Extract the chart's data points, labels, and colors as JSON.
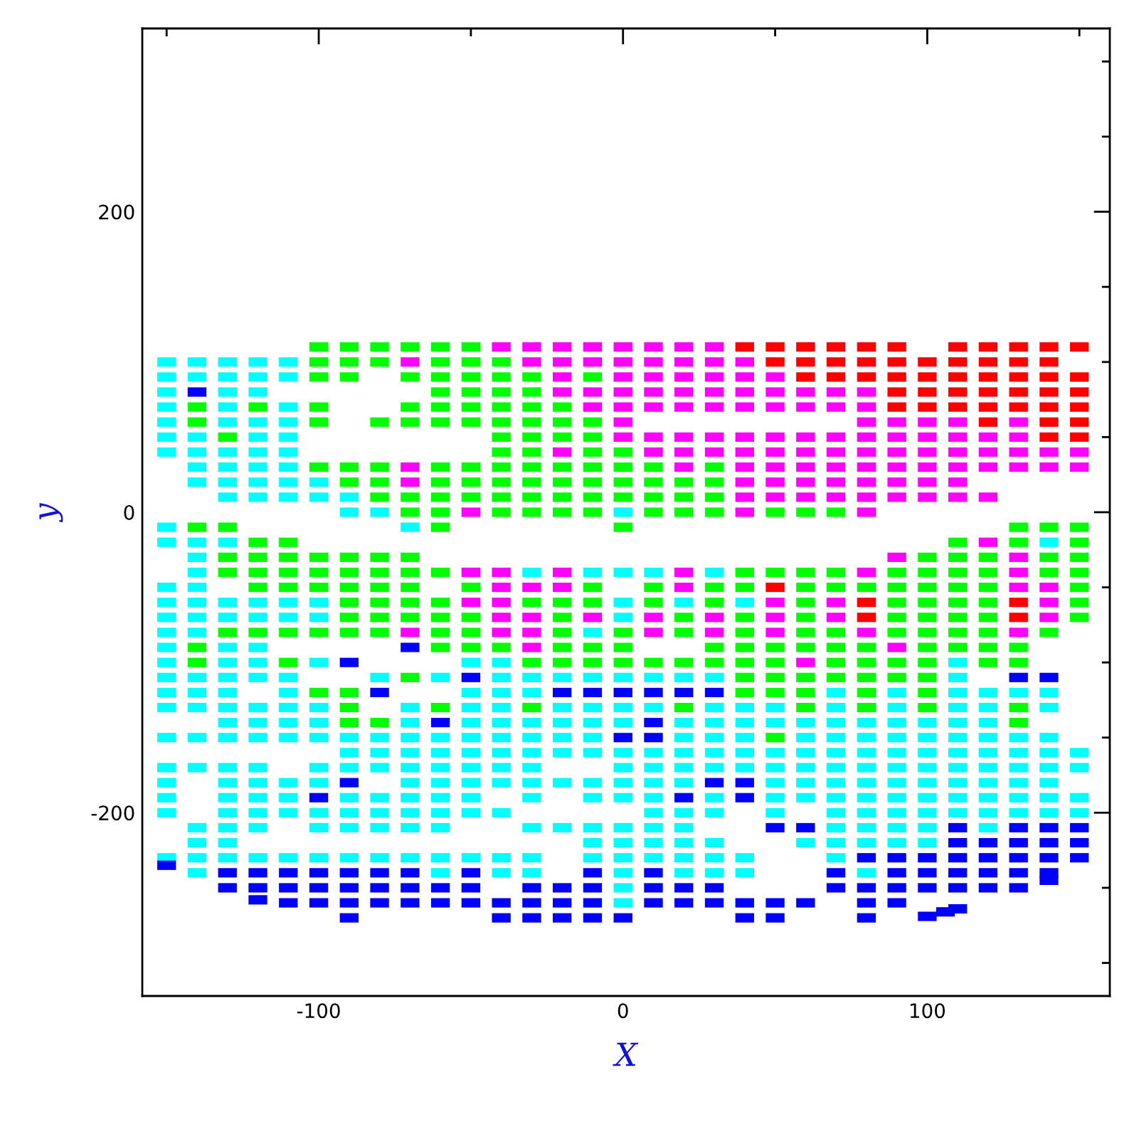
{
  "chart_data": {
    "type": "scatter",
    "xlabel": "X",
    "ylabel": "y",
    "marker": "square",
    "grid": false,
    "xlim": [
      -158,
      160
    ],
    "ylim": [
      -322,
      322
    ],
    "xticks": [
      {
        "value": -150,
        "label": null
      },
      -100,
      {
        "value": -50,
        "label": null
      },
      0,
      {
        "value": 50,
        "label": null
      },
      100,
      {
        "value": 150,
        "label": null
      }
    ],
    "yticks": [
      {
        "value": -300,
        "label": null
      },
      {
        "value": -250,
        "label": null
      },
      -200,
      {
        "value": -150,
        "label": null
      },
      {
        "value": -100,
        "label": null
      },
      {
        "value": -50,
        "label": null
      },
      0,
      {
        "value": 50,
        "label": null
      },
      {
        "value": 100,
        "label": null
      },
      {
        "value": 150,
        "label": null
      },
      200,
      {
        "value": 250,
        "label": null
      },
      {
        "value": 300,
        "label": null
      }
    ],
    "series": [
      {
        "color": "#00ffff",
        "x": [
          -150,
          -140,
          -130,
          -120,
          -110,
          -150,
          -140,
          -130,
          -120,
          -110,
          -150,
          -130,
          -120,
          -150,
          -130,
          -110,
          -150,
          -130,
          -120,
          -110,
          -150,
          -140,
          -120,
          -110,
          -150,
          -140,
          -130,
          -120,
          -110,
          -140,
          -130,
          -120,
          -110,
          -140,
          -130,
          -120,
          -110,
          -100,
          -130,
          -120,
          -110,
          -100,
          -90,
          -90,
          -80,
          0,
          -150,
          -70,
          -150,
          -140,
          -130,
          140,
          -140,
          -140,
          -30,
          -10,
          0,
          10,
          30,
          -150,
          -140,
          -150,
          -140,
          -130,
          -120,
          -110,
          -100,
          0,
          20,
          40,
          -150,
          -140,
          -130,
          -120,
          -110,
          -100,
          0,
          -150,
          -140,
          -10,
          -150,
          -130,
          -120,
          -150,
          -130,
          -120,
          -100,
          -50,
          -40,
          110,
          -150,
          -140,
          -130,
          -120,
          -110,
          -80,
          -60,
          -40,
          -30,
          -20,
          -10,
          0,
          10,
          20,
          30,
          110,
          -150,
          -140,
          -130,
          -110,
          -50,
          -40,
          -30,
          70,
          90,
          110,
          120,
          130,
          140,
          -150,
          -140,
          -130,
          -120,
          -110,
          -100,
          -70,
          -50,
          -40,
          -20,
          -10,
          0,
          10,
          30,
          40,
          50,
          70,
          90,
          110,
          120,
          140,
          -130,
          -120,
          -110,
          -100,
          -70,
          -50,
          -40,
          -30,
          -20,
          -10,
          0,
          20,
          30,
          40,
          50,
          60,
          70,
          80,
          90,
          100,
          110,
          120,
          -150,
          -140,
          -130,
          -120,
          -110,
          -100,
          -90,
          -80,
          -70,
          -60,
          -50,
          -40,
          -30,
          -20,
          -10,
          20,
          30,
          40,
          60,
          70,
          80,
          90,
          100,
          110,
          120,
          130,
          140,
          -90,
          -80,
          -70,
          -60,
          -50,
          -40,
          -30,
          -20,
          -10,
          0,
          10,
          20,
          30,
          40,
          50,
          60,
          70,
          80,
          90,
          100,
          110,
          120,
          130,
          140,
          150,
          -150,
          -140,
          -130,
          -120,
          -100,
          -90,
          -80,
          -70,
          -60,
          -50,
          -40,
          -30,
          0,
          10,
          20,
          30,
          40,
          50,
          60,
          70,
          80,
          90,
          100,
          110,
          120,
          130,
          140,
          150,
          -150,
          -130,
          -120,
          -110,
          -100,
          -70,
          -60,
          -50,
          -40,
          -30,
          -20,
          -10,
          0,
          10,
          20,
          50,
          60,
          70,
          80,
          90,
          100,
          110,
          120,
          130,
          140,
          -150,
          -130,
          -120,
          -110,
          -90,
          -80,
          -70,
          -60,
          -50,
          -30,
          -10,
          0,
          10,
          30,
          50,
          60,
          70,
          80,
          90,
          100,
          110,
          120,
          130,
          140,
          150,
          -150,
          -130,
          -120,
          -110,
          -100,
          -90,
          -80,
          -70,
          -60,
          -50,
          -40,
          10,
          20,
          30,
          50,
          70,
          80,
          90,
          100,
          110,
          120,
          130,
          140,
          150,
          -140,
          -130,
          -120,
          -100,
          -90,
          -80,
          -70,
          -60,
          -30,
          -20,
          -10,
          0,
          10,
          20,
          70,
          80,
          90,
          100,
          120,
          -140,
          -130,
          -10,
          0,
          10,
          20,
          30,
          60,
          70,
          80,
          90,
          100,
          -150,
          -140,
          -130,
          -120,
          -110,
          -100,
          -90,
          -80,
          -70,
          -60,
          -50,
          -40,
          -30,
          -10,
          0,
          10,
          20,
          30,
          40,
          70,
          -140,
          -60,
          -40,
          -30,
          0,
          20,
          30,
          40,
          80,
          0,
          0
        ],
        "values": [
          100,
          100,
          100,
          100,
          100,
          90,
          90,
          90,
          90,
          90,
          80,
          80,
          80,
          70,
          70,
          70,
          60,
          60,
          60,
          60,
          50,
          50,
          50,
          50,
          40,
          40,
          40,
          40,
          40,
          30,
          30,
          30,
          30,
          20,
          20,
          20,
          20,
          20,
          10,
          10,
          10,
          10,
          10,
          0,
          0,
          0,
          -10,
          -10,
          -20,
          -20,
          -20,
          -20,
          -30,
          -40,
          -40,
          -40,
          -40,
          -40,
          -40,
          -50,
          -50,
          -60,
          -60,
          -60,
          -60,
          -60,
          -60,
          -60,
          -60,
          -60,
          -70,
          -70,
          -70,
          -70,
          -70,
          -70,
          -70,
          -80,
          -80,
          -80,
          -90,
          -90,
          -90,
          -100,
          -100,
          -100,
          -100,
          -100,
          -100,
          -100,
          -110,
          -110,
          -110,
          -110,
          -110,
          -110,
          -110,
          -110,
          -110,
          -110,
          -110,
          -110,
          -110,
          -110,
          -110,
          -110,
          -120,
          -120,
          -120,
          -120,
          -120,
          -120,
          -120,
          -120,
          -120,
          -120,
          -120,
          -120,
          -120,
          -130,
          -130,
          -130,
          -130,
          -130,
          -130,
          -130,
          -130,
          -130,
          -130,
          -130,
          -130,
          -130,
          -130,
          -130,
          -130,
          -130,
          -130,
          -130,
          -130,
          -130,
          -140,
          -140,
          -140,
          -140,
          -140,
          -140,
          -140,
          -140,
          -140,
          -140,
          -140,
          -140,
          -140,
          -140,
          -140,
          -140,
          -140,
          -140,
          -140,
          -140,
          -140,
          -140,
          -150,
          -150,
          -150,
          -150,
          -150,
          -150,
          -150,
          -150,
          -150,
          -150,
          -150,
          -150,
          -150,
          -150,
          -150,
          -150,
          -150,
          -150,
          -150,
          -150,
          -150,
          -150,
          -150,
          -150,
          -150,
          -150,
          -150,
          -160,
          -160,
          -160,
          -160,
          -160,
          -160,
          -160,
          -160,
          -160,
          -160,
          -160,
          -160,
          -160,
          -160,
          -160,
          -160,
          -160,
          -160,
          -160,
          -160,
          -160,
          -160,
          -160,
          -160,
          -160,
          -170,
          -170,
          -170,
          -170,
          -170,
          -170,
          -170,
          -170,
          -170,
          -170,
          -170,
          -170,
          -170,
          -170,
          -170,
          -170,
          -170,
          -170,
          -170,
          -170,
          -170,
          -170,
          -170,
          -170,
          -170,
          -170,
          -170,
          -170,
          -180,
          -180,
          -180,
          -180,
          -180,
          -180,
          -180,
          -180,
          -180,
          -180,
          -180,
          -180,
          -180,
          -180,
          -180,
          -180,
          -180,
          -180,
          -180,
          -180,
          -180,
          -180,
          -180,
          -180,
          -180,
          -190,
          -190,
          -190,
          -190,
          -190,
          -190,
          -190,
          -190,
          -190,
          -190,
          -190,
          -190,
          -190,
          -190,
          -190,
          -190,
          -190,
          -190,
          -190,
          -190,
          -190,
          -190,
          -190,
          -190,
          -190,
          -200,
          -200,
          -200,
          -200,
          -200,
          -200,
          -200,
          -200,
          -200,
          -200,
          -200,
          -200,
          -200,
          -200,
          -200,
          -200,
          -200,
          -200,
          -200,
          -200,
          -200,
          -200,
          -200,
          -200,
          -210,
          -210,
          -210,
          -210,
          -210,
          -210,
          -210,
          -210,
          -210,
          -210,
          -210,
          -210,
          -210,
          -210,
          -210,
          -210,
          -210,
          -210,
          -210,
          -220,
          -220,
          -220,
          -220,
          -220,
          -220,
          -220,
          -220,
          -220,
          -220,
          -220,
          -220,
          -230,
          -230,
          -230,
          -230,
          -230,
          -230,
          -230,
          -230,
          -230,
          -230,
          -230,
          -230,
          -230,
          -230,
          -230,
          -230,
          -230,
          -230,
          -230,
          -230,
          -240,
          -240,
          -240,
          -240,
          -240,
          -240,
          -240,
          -240,
          -240,
          -250,
          -260
        ]
      },
      {
        "color": "#00ff00",
        "x": [
          -100,
          -90,
          -80,
          -70,
          -60,
          -50,
          -100,
          -90,
          -80,
          -60,
          -50,
          -40,
          -100,
          -90,
          -70,
          -60,
          -50,
          -40,
          -30,
          -10,
          -60,
          -50,
          -40,
          -30,
          -140,
          -120,
          -100,
          -70,
          -60,
          -50,
          -40,
          -30,
          -20,
          -140,
          -100,
          -80,
          -70,
          -60,
          -50,
          -40,
          -30,
          -20,
          -10,
          -130,
          -40,
          -30,
          -20,
          -10,
          -40,
          -30,
          -10,
          0,
          -100,
          -90,
          -80,
          -60,
          -50,
          -40,
          -30,
          -20,
          -10,
          0,
          10,
          30,
          -90,
          -80,
          -60,
          -50,
          -40,
          -30,
          -20,
          -10,
          0,
          10,
          20,
          30,
          -80,
          -70,
          -60,
          -50,
          -40,
          -30,
          -20,
          -10,
          0,
          10,
          20,
          30,
          -70,
          -60,
          -40,
          -30,
          -20,
          -10,
          10,
          20,
          30,
          50,
          60,
          70,
          -140,
          -130,
          -60,
          0,
          130,
          140,
          150,
          -120,
          -110,
          110,
          130,
          150,
          -130,
          -120,
          -110,
          -100,
          -90,
          -80,
          -70,
          100,
          110,
          120,
          140,
          150,
          -130,
          -120,
          -110,
          -100,
          -90,
          -80,
          -70,
          -60,
          40,
          50,
          60,
          70,
          90,
          100,
          110,
          120,
          140,
          150,
          -120,
          -110,
          -100,
          -90,
          -80,
          -70,
          -50,
          -10,
          10,
          30,
          40,
          60,
          70,
          80,
          90,
          100,
          110,
          120,
          150,
          -90,
          -80,
          -70,
          -60,
          -30,
          -20,
          -10,
          10,
          30,
          60,
          90,
          100,
          110,
          120,
          150,
          -90,
          -80,
          -70,
          -60,
          -50,
          -20,
          20,
          40,
          60,
          90,
          100,
          110,
          120,
          150,
          -130,
          -120,
          -110,
          -100,
          -90,
          -80,
          -60,
          -50,
          -20,
          0,
          20,
          40,
          60,
          70,
          90,
          100,
          110,
          120,
          140,
          -140,
          -60,
          -50,
          -40,
          -20,
          -10,
          0,
          30,
          40,
          50,
          60,
          70,
          80,
          100,
          110,
          120,
          130,
          -140,
          -110,
          -30,
          -20,
          -10,
          0,
          10,
          20,
          30,
          40,
          50,
          70,
          80,
          90,
          100,
          120,
          130,
          -70,
          40,
          50,
          60,
          70,
          80,
          90,
          100,
          -100,
          -90,
          40,
          50,
          60,
          80,
          100,
          -90,
          -60,
          -30,
          20,
          60,
          80,
          100,
          130,
          -90,
          -80,
          130,
          50
        ],
        "values": [
          110,
          110,
          110,
          110,
          110,
          110,
          100,
          100,
          100,
          100,
          100,
          100,
          90,
          90,
          90,
          90,
          90,
          90,
          90,
          90,
          80,
          80,
          80,
          80,
          70,
          70,
          70,
          70,
          70,
          70,
          70,
          70,
          70,
          60,
          60,
          60,
          60,
          60,
          60,
          60,
          60,
          60,
          60,
          50,
          50,
          50,
          50,
          50,
          40,
          40,
          40,
          40,
          30,
          30,
          30,
          30,
          30,
          30,
          30,
          30,
          30,
          30,
          30,
          30,
          20,
          20,
          20,
          20,
          20,
          20,
          20,
          20,
          20,
          20,
          20,
          20,
          10,
          10,
          10,
          10,
          10,
          10,
          10,
          10,
          10,
          10,
          10,
          10,
          0,
          0,
          0,
          0,
          0,
          0,
          0,
          0,
          0,
          0,
          0,
          0,
          -10,
          -10,
          -10,
          -10,
          -10,
          -10,
          -10,
          -20,
          -20,
          -20,
          -20,
          -20,
          -30,
          -30,
          -30,
          -30,
          -30,
          -30,
          -30,
          -30,
          -30,
          -30,
          -30,
          -30,
          -40,
          -40,
          -40,
          -40,
          -40,
          -40,
          -40,
          -40,
          -40,
          -40,
          -40,
          -40,
          -40,
          -40,
          -40,
          -40,
          -40,
          -40,
          -50,
          -50,
          -50,
          -50,
          -50,
          -50,
          -50,
          -50,
          -50,
          -50,
          -50,
          -50,
          -50,
          -50,
          -50,
          -50,
          -50,
          -50,
          -50,
          -60,
          -60,
          -60,
          -60,
          -60,
          -60,
          -60,
          -60,
          -60,
          -60,
          -60,
          -60,
          -60,
          -60,
          -60,
          -70,
          -70,
          -70,
          -70,
          -70,
          -70,
          -70,
          -70,
          -70,
          -70,
          -70,
          -70,
          -70,
          -70,
          -80,
          -80,
          -80,
          -80,
          -80,
          -80,
          -80,
          -80,
          -80,
          -80,
          -80,
          -80,
          -80,
          -80,
          -80,
          -80,
          -80,
          -80,
          -80,
          -90,
          -90,
          -90,
          -90,
          -90,
          -90,
          -90,
          -90,
          -90,
          -90,
          -90,
          -90,
          -90,
          -90,
          -90,
          -90,
          -90,
          -100,
          -100,
          -100,
          -100,
          -100,
          -100,
          -100,
          -100,
          -100,
          -100,
          -100,
          -100,
          -100,
          -100,
          -100,
          -100,
          -100,
          -110,
          -110,
          -110,
          -110,
          -110,
          -110,
          -110,
          -110,
          -120,
          -120,
          -120,
          -120,
          -120,
          -120,
          -120,
          -130,
          -130,
          -130,
          -130,
          -130,
          -130,
          -130,
          -130,
          -140,
          -140,
          -140,
          -150
        ]
      },
      {
        "color": "#ff00ff",
        "x": [
          -40,
          -30,
          -20,
          -10,
          0,
          10,
          20,
          30,
          -70,
          -30,
          -20,
          -10,
          0,
          10,
          20,
          30,
          40,
          -20,
          0,
          10,
          20,
          30,
          40,
          50,
          -20,
          -10,
          0,
          10,
          20,
          30,
          40,
          50,
          60,
          70,
          80,
          -10,
          0,
          10,
          20,
          30,
          40,
          50,
          60,
          70,
          80,
          0,
          80,
          90,
          100,
          110,
          130,
          0,
          10,
          20,
          30,
          40,
          50,
          60,
          70,
          80,
          90,
          100,
          110,
          120,
          130,
          -20,
          10,
          20,
          30,
          40,
          50,
          60,
          70,
          80,
          90,
          100,
          110,
          120,
          130,
          140,
          150,
          -70,
          20,
          40,
          50,
          60,
          70,
          80,
          90,
          100,
          110,
          120,
          130,
          140,
          150,
          -70,
          40,
          50,
          60,
          70,
          80,
          90,
          100,
          110,
          40,
          50,
          60,
          70,
          80,
          90,
          100,
          110,
          120,
          -50,
          40,
          80,
          120,
          90,
          130,
          -50,
          -40,
          -20,
          20,
          80,
          130,
          -40,
          -30,
          -20,
          20,
          130,
          140,
          -50,
          -40,
          50,
          70,
          140,
          -40,
          -30,
          -10,
          10,
          30,
          50,
          70,
          140,
          -70,
          -40,
          -30,
          10,
          30,
          50,
          80,
          130,
          -30,
          90,
          60
        ],
        "values": [
          110,
          110,
          110,
          110,
          110,
          110,
          110,
          110,
          100,
          100,
          100,
          100,
          100,
          100,
          100,
          100,
          100,
          90,
          90,
          90,
          90,
          90,
          90,
          90,
          80,
          80,
          80,
          80,
          80,
          80,
          80,
          80,
          80,
          80,
          80,
          70,
          70,
          70,
          70,
          70,
          70,
          70,
          70,
          70,
          70,
          60,
          60,
          60,
          60,
          60,
          60,
          50,
          50,
          50,
          50,
          50,
          50,
          50,
          50,
          50,
          50,
          50,
          50,
          50,
          50,
          40,
          40,
          40,
          40,
          40,
          40,
          40,
          40,
          40,
          40,
          40,
          40,
          40,
          40,
          40,
          40,
          30,
          30,
          30,
          30,
          30,
          30,
          30,
          30,
          30,
          30,
          30,
          30,
          30,
          30,
          20,
          20,
          20,
          20,
          20,
          20,
          20,
          20,
          20,
          10,
          10,
          10,
          10,
          10,
          10,
          10,
          10,
          10,
          0,
          0,
          0,
          -20,
          -30,
          -30,
          -40,
          -40,
          -40,
          -40,
          -40,
          -40,
          -50,
          -50,
          -50,
          -50,
          -50,
          -50,
          -60,
          -60,
          -60,
          -60,
          -60,
          -70,
          -70,
          -70,
          -70,
          -70,
          -70,
          -70,
          -70,
          -80,
          -80,
          -80,
          -80,
          -80,
          -80,
          -80,
          -80,
          -90,
          -90,
          -100
        ]
      },
      {
        "color": "#ff0000",
        "x": [
          40,
          50,
          60,
          70,
          80,
          90,
          110,
          120,
          130,
          140,
          150,
          50,
          60,
          70,
          80,
          90,
          100,
          110,
          120,
          130,
          140,
          60,
          70,
          80,
          90,
          100,
          110,
          120,
          130,
          140,
          150,
          90,
          100,
          110,
          120,
          130,
          140,
          150,
          90,
          100,
          110,
          120,
          130,
          140,
          150,
          120,
          140,
          150,
          140,
          150,
          50,
          80,
          130,
          80,
          130
        ],
        "values": [
          110,
          110,
          110,
          110,
          110,
          110,
          110,
          110,
          110,
          110,
          110,
          100,
          100,
          100,
          100,
          100,
          100,
          100,
          100,
          100,
          100,
          90,
          90,
          90,
          90,
          90,
          90,
          90,
          90,
          90,
          90,
          80,
          80,
          80,
          80,
          80,
          80,
          80,
          70,
          70,
          70,
          70,
          70,
          70,
          70,
          60,
          60,
          60,
          50,
          50,
          -50,
          -60,
          -60,
          -70,
          -70
        ]
      },
      {
        "color": "#0000ff",
        "x": [
          -140,
          -70,
          -90,
          -50,
          130,
          140,
          -80,
          -20,
          -10,
          0,
          10,
          20,
          30,
          -60,
          10,
          0,
          10,
          -90,
          30,
          40,
          -100,
          20,
          40,
          50,
          60,
          110,
          130,
          140,
          150,
          110,
          120,
          130,
          140,
          150,
          80,
          90,
          100,
          110,
          120,
          130,
          140,
          150,
          -150,
          -130,
          -120,
          -110,
          -100,
          -90,
          -80,
          -70,
          -50,
          -10,
          10,
          70,
          90,
          100,
          110,
          120,
          130,
          140,
          140,
          -130,
          -120,
          -110,
          -100,
          -90,
          -80,
          -70,
          -60,
          -50,
          -30,
          -20,
          -10,
          10,
          20,
          30,
          70,
          80,
          90,
          100,
          110,
          120,
          130,
          -120,
          -110,
          -100,
          -90,
          -80,
          -70,
          -60,
          -50,
          -40,
          -30,
          -20,
          -10,
          10,
          20,
          30,
          40,
          50,
          60,
          80,
          90,
          100,
          106,
          110,
          -90,
          -40,
          -30,
          -20,
          -10,
          0,
          40,
          50,
          80
        ],
        "values": [
          80,
          -90,
          -100,
          -110,
          -110,
          -110,
          -120,
          -120,
          -120,
          -120,
          -120,
          -120,
          -120,
          -140,
          -140,
          -150,
          -150,
          -180,
          -180,
          -180,
          -190,
          -190,
          -190,
          -210,
          -210,
          -210,
          -210,
          -210,
          -210,
          -220,
          -220,
          -220,
          -220,
          -220,
          -230,
          -230,
          -230,
          -230,
          -230,
          -230,
          -230,
          -230,
          -235,
          -240,
          -240,
          -240,
          -240,
          -240,
          -240,
          -240,
          -240,
          -240,
          -240,
          -240,
          -240,
          -240,
          -240,
          -240,
          -240,
          -240,
          -245,
          -250,
          -250,
          -250,
          -250,
          -250,
          -250,
          -250,
          -250,
          -250,
          -250,
          -250,
          -250,
          -250,
          -250,
          -250,
          -250,
          -250,
          -250,
          -250,
          -250,
          -250,
          -250,
          -258,
          -260,
          -260,
          -260,
          -260,
          -260,
          -260,
          -260,
          -260,
          -260,
          -260,
          -260,
          -260,
          -260,
          -260,
          -260,
          -260,
          -260,
          -260,
          -260,
          -269,
          -266,
          -264,
          -270,
          -270,
          -270,
          -270,
          -270,
          -270,
          -270,
          -270,
          -270
        ]
      }
    ]
  }
}
